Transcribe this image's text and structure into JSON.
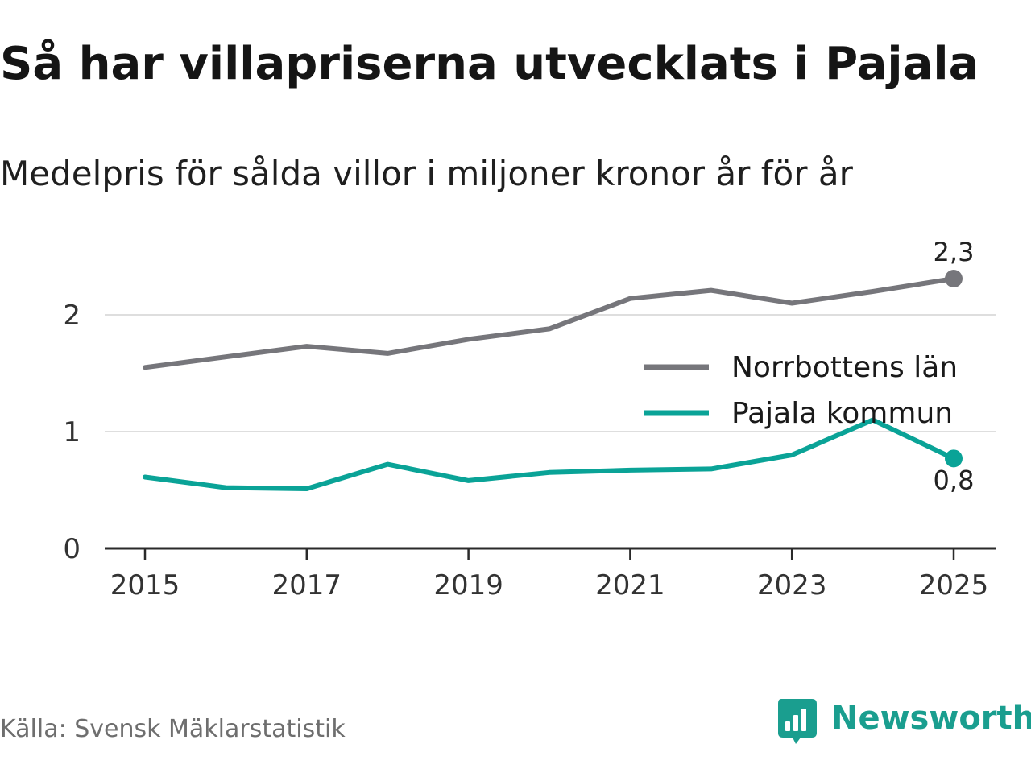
{
  "title": "Så har villapriserna utvecklats i Pajala",
  "subtitle": "Medelpris för sålda villor i miljoner kronor år för år",
  "source": "Källa: Svensk Mäklarstatistik",
  "brand": {
    "name": "Newsworthy",
    "icon": "newsworthy-logo-icon",
    "color": "#1a9e8f"
  },
  "chart_data": {
    "type": "line",
    "title": "Så har villapriserna utvecklats i Pajala",
    "subtitle": "Medelpris för sålda villor i miljoner kronor år för år",
    "xlabel": "",
    "ylabel": "",
    "x": [
      2015,
      2016,
      2017,
      2018,
      2019,
      2020,
      2021,
      2022,
      2023,
      2024,
      2025
    ],
    "x_ticks": [
      "2015",
      "2017",
      "2019",
      "2021",
      "2023",
      "2025"
    ],
    "y_ticks": [
      "0",
      "1",
      "2"
    ],
    "ylim": [
      0,
      2.5
    ],
    "grid": true,
    "legend_position": "right",
    "series": [
      {
        "name": "Norrbottens län",
        "color": "#76767b",
        "values": [
          1.55,
          1.64,
          1.73,
          1.67,
          1.79,
          1.88,
          2.14,
          2.21,
          2.1,
          2.2,
          2.31
        ],
        "end_label": "2,3"
      },
      {
        "name": "Pajala kommun",
        "color": "#0aa397",
        "values": [
          0.61,
          0.52,
          0.51,
          0.72,
          0.58,
          0.65,
          0.67,
          0.68,
          0.8,
          1.1,
          0.77
        ],
        "end_label": "0,8"
      }
    ]
  }
}
